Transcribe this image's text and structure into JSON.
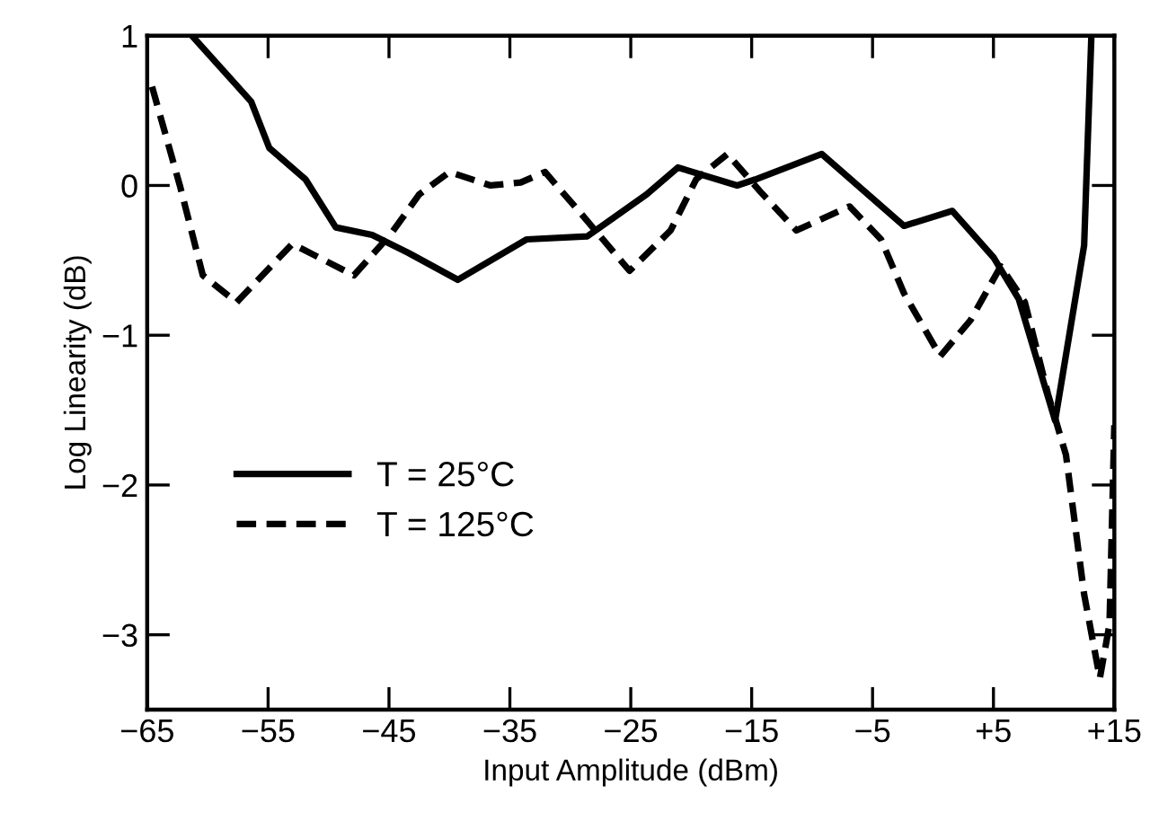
{
  "chart_data": {
    "type": "line",
    "xlabel": "Input Amplitude (dBm)",
    "ylabel": "Log Linearity (dB)",
    "xlim": [
      -65,
      15
    ],
    "ylim": [
      -3.5,
      1
    ],
    "xticks": [
      {
        "value": -65,
        "label": "−65"
      },
      {
        "value": -55,
        "label": "−55"
      },
      {
        "value": -45,
        "label": "−45"
      },
      {
        "value": -35,
        "label": "−35"
      },
      {
        "value": -25,
        "label": "−25"
      },
      {
        "value": -15,
        "label": "−15"
      },
      {
        "value": -5,
        "label": "−5"
      },
      {
        "value": 5,
        "label": "+5"
      },
      {
        "value": 15,
        "label": "+15"
      }
    ],
    "yticks": [
      {
        "value": -3,
        "label": "−3"
      },
      {
        "value": -2,
        "label": "−2"
      },
      {
        "value": -1,
        "label": "−1"
      },
      0,
      1
    ],
    "grid": false,
    "legend": "lower left",
    "marker": "none",
    "series": [
      {
        "name": "T = 25°C",
        "color": "#000000",
        "line_style": "solid",
        "x": [
          -61.3,
          -56.4,
          -54.9,
          -51.9,
          -49.4,
          -46.4,
          -43.4,
          -39.3,
          -33.6,
          -28.6,
          -23.7,
          -21.1,
          -16.2,
          -14.7,
          -9.2,
          -2.4,
          1.6,
          5.0,
          7.1,
          10.1,
          12.5,
          13.1
        ],
        "values": [
          1.0,
          0.56,
          0.25,
          0.04,
          -0.28,
          -0.33,
          -0.45,
          -0.63,
          -0.36,
          -0.34,
          -0.06,
          0.12,
          0.0,
          0.04,
          0.21,
          -0.27,
          -0.17,
          -0.48,
          -0.76,
          -1.57,
          -0.4,
          1.0
        ]
      },
      {
        "name": "T = 125°C",
        "color": "#000000",
        "line_style": "dashed",
        "x": [
          -64.6,
          -62.3,
          -60.4,
          -57.6,
          -53.0,
          -47.9,
          -44.9,
          -42.5,
          -40.0,
          -36.6,
          -34.1,
          -32.1,
          -29.2,
          -25.1,
          -21.7,
          -19.6,
          -17.0,
          -14.3,
          -11.3,
          -6.9,
          -4.3,
          -2.4,
          0.6,
          3.1,
          5.6,
          7.6,
          9.5,
          11.0,
          12.5,
          13.8,
          14.6,
          15.0
        ],
        "values": [
          0.66,
          0.0,
          -0.6,
          -0.78,
          -0.39,
          -0.6,
          -0.33,
          -0.06,
          0.09,
          0.0,
          0.02,
          0.09,
          -0.18,
          -0.57,
          -0.3,
          0.04,
          0.21,
          -0.04,
          -0.3,
          -0.14,
          -0.36,
          -0.72,
          -1.14,
          -0.9,
          -0.54,
          -0.78,
          -1.39,
          -1.8,
          -2.73,
          -3.29,
          -2.93,
          -1.6
        ]
      }
    ]
  }
}
